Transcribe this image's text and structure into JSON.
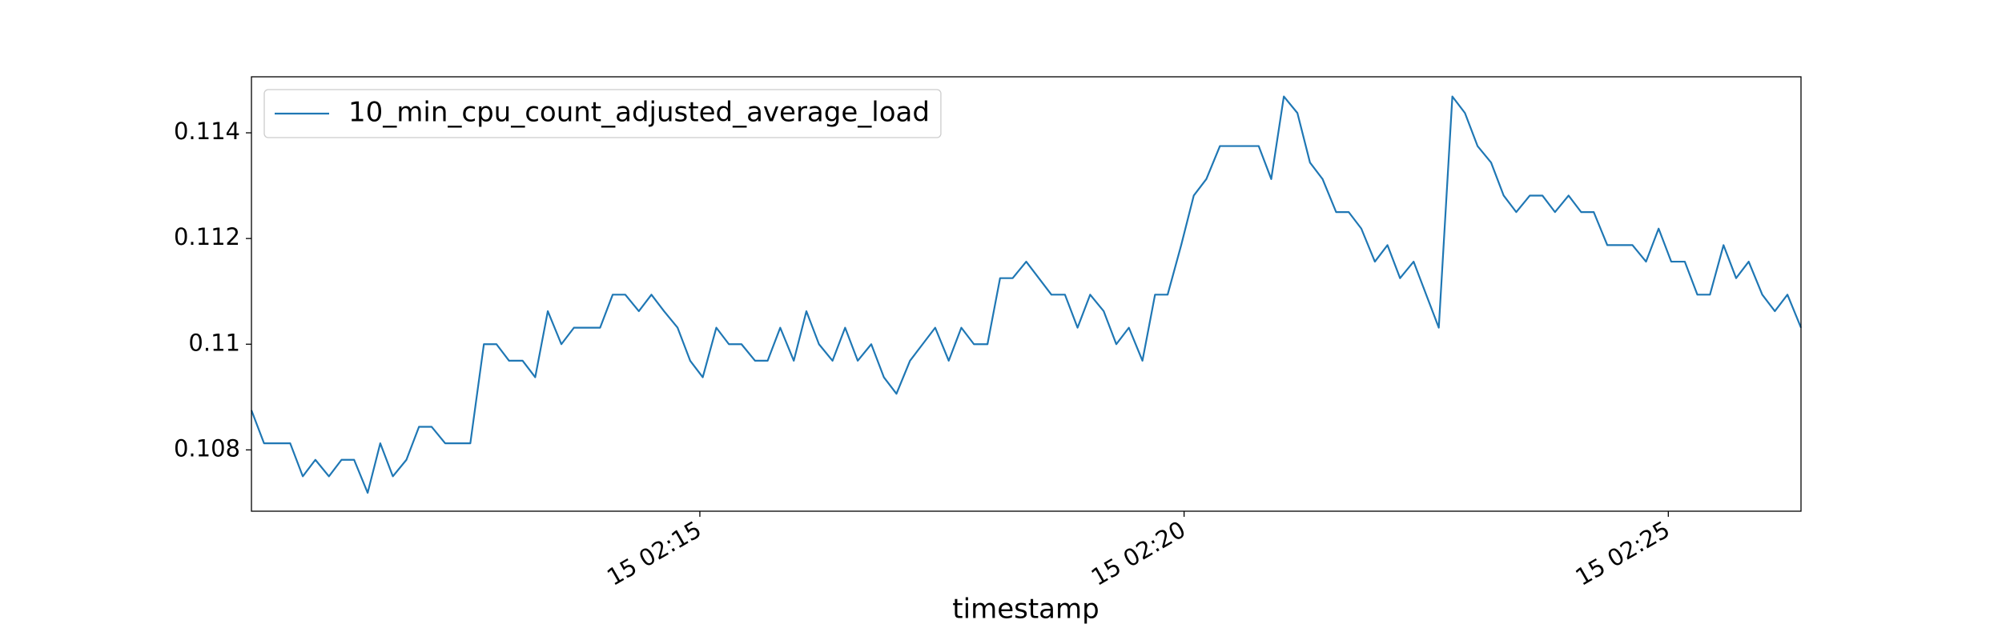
{
  "chart_data": {
    "type": "line",
    "xlabel": "timestamp",
    "x": [
      10.37,
      10.5,
      10.63,
      10.77,
      10.9,
      11.03,
      11.17,
      11.3,
      11.43,
      11.57,
      11.7,
      11.83,
      11.97,
      12.1,
      12.23,
      12.37,
      12.5,
      12.63,
      12.77,
      12.9,
      13.03,
      13.17,
      13.3,
      13.43,
      13.57,
      13.7,
      13.83,
      13.97,
      14.1,
      14.23,
      14.37,
      14.5,
      14.63,
      14.77,
      14.9,
      15.03,
      15.17,
      15.3,
      15.43,
      15.57,
      15.7,
      15.83,
      15.97,
      16.1,
      16.23,
      16.37,
      16.5,
      16.63,
      16.77,
      16.9,
      17.03,
      17.17,
      17.3,
      17.43,
      17.57,
      17.7,
      17.83,
      17.97,
      18.1,
      18.23,
      18.37,
      18.5,
      18.63,
      18.77,
      18.9,
      19.03,
      19.17,
      19.3,
      19.43,
      19.57,
      19.7,
      19.83,
      19.97,
      20.1,
      20.23,
      20.37,
      20.5,
      20.63,
      20.77,
      20.9,
      21.03,
      21.17,
      21.3,
      21.43,
      21.57,
      21.7,
      21.83,
      21.97,
      22.1,
      22.23,
      22.37,
      22.5,
      22.63,
      22.77,
      22.9,
      23.03,
      23.17,
      23.3,
      23.43,
      23.57,
      23.7,
      23.83,
      23.97,
      24.1,
      24.23,
      24.37,
      24.5,
      24.63,
      24.77,
      24.9,
      25.03,
      25.17,
      25.3,
      25.43,
      25.57,
      25.7,
      25.83,
      25.97,
      26.1,
      26.23,
      26.37
    ],
    "series": [
      {
        "name": "10_min_cpu_count_adjusted_average_load",
        "color": "#1f77b4",
        "values": [
          0.10875,
          0.108125,
          0.108125,
          0.108125,
          0.1075,
          0.1078125,
          0.1075,
          0.1078125,
          0.1078125,
          0.1071875,
          0.108125,
          0.1075,
          0.1078125,
          0.1084375,
          0.1084375,
          0.108125,
          0.108125,
          0.108125,
          0.11,
          0.11,
          0.1096875,
          0.1096875,
          0.109375,
          0.110625,
          0.11,
          0.1103125,
          0.1103125,
          0.1103125,
          0.1109375,
          0.1109375,
          0.110625,
          0.1109375,
          0.110625,
          0.1103125,
          0.1096875,
          0.109375,
          0.1103125,
          0.11,
          0.11,
          0.1096875,
          0.1096875,
          0.1103125,
          0.1096875,
          0.110625,
          0.11,
          0.1096875,
          0.1103125,
          0.1096875,
          0.11,
          0.109375,
          0.1090625,
          0.1096875,
          0.11,
          0.1103125,
          0.1096875,
          0.1103125,
          0.11,
          0.11,
          0.11125,
          0.11125,
          0.1115625,
          0.11125,
          0.1109375,
          0.1109375,
          0.1103125,
          0.1109375,
          0.110625,
          0.11,
          0.1103125,
          0.1096875,
          0.1109375,
          0.1109375,
          0.111875,
          0.1128125,
          0.113125,
          0.11375,
          0.11375,
          0.11375,
          0.11375,
          0.113125,
          0.1146875,
          0.114375,
          0.1134375,
          0.113125,
          0.1125,
          0.1125,
          0.1121875,
          0.1115625,
          0.111875,
          0.11125,
          0.1115625,
          0.1109375,
          0.1103125,
          0.1146875,
          0.114375,
          0.11375,
          0.1134375,
          0.1128125,
          0.1125,
          0.1128125,
          0.1128125,
          0.1125,
          0.1128125,
          0.1125,
          0.1125,
          0.111875,
          0.111875,
          0.111875,
          0.1115625,
          0.1121875,
          0.1115625,
          0.1115625,
          0.1109375,
          0.1109375,
          0.111875,
          0.11125,
          0.1115625,
          0.1109375,
          0.110625,
          0.1109375,
          0.1103125
        ]
      }
    ],
    "xlim": [
      10.37,
      26.37
    ],
    "xticks": [
      {
        "value": 15,
        "label": "15 02:15"
      },
      {
        "value": 20,
        "label": "15 02:20"
      },
      {
        "value": 25,
        "label": "15 02:25"
      }
    ],
    "ylim": [
      0.10684,
      0.11506
    ],
    "yticks": [
      0.108,
      0.11,
      0.112,
      0.114
    ],
    "legend": "upper left"
  }
}
